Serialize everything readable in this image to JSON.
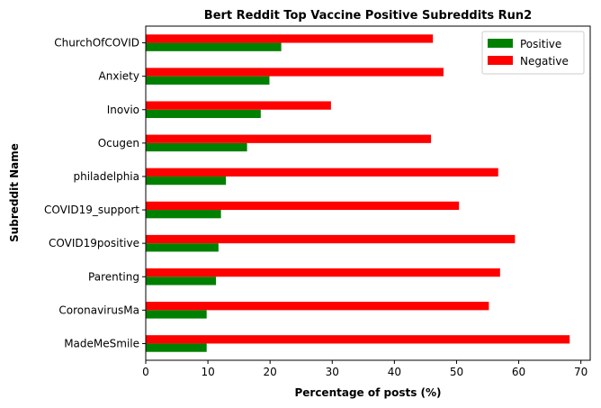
{
  "chart_data": {
    "type": "bar",
    "orientation": "horizontal",
    "title": "Bert Reddit Top Vaccine Positive Subreddits Run2",
    "xlabel": "Percentage of posts (%)",
    "ylabel": "Subreddit Name",
    "xlim": [
      0,
      71.5
    ],
    "xticks": [
      0,
      10,
      20,
      30,
      40,
      50,
      60,
      70
    ],
    "grid": false,
    "legend_position": "top-right",
    "categories": [
      "MadeMeSmile",
      "CoronavirusMa",
      "Parenting",
      "COVID19positive",
      "COVID19_support",
      "philadelphia",
      "Ocugen",
      "Inovio",
      "Anxiety",
      "ChurchOfCOVID"
    ],
    "series": [
      {
        "name": "Positive",
        "color": "#008000",
        "values": [
          9.8,
          9.8,
          11.3,
          11.7,
          12.1,
          12.9,
          16.3,
          18.5,
          19.9,
          21.8
        ]
      },
      {
        "name": "Negative",
        "color": "#ff0000",
        "values": [
          68.2,
          55.2,
          57.0,
          59.4,
          50.4,
          56.7,
          45.9,
          29.8,
          47.9,
          46.2
        ]
      }
    ]
  }
}
